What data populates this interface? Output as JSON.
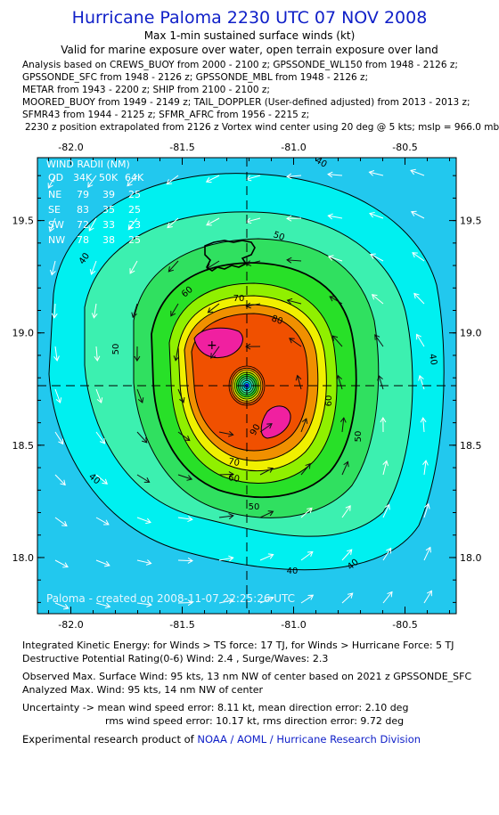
{
  "header": {
    "title": "Hurricane Paloma 2230 UTC 07 NOV 2008",
    "subtitle": "Max 1-min sustained surface winds (kt)",
    "valid_note": "Valid for marine exposure over water, open terrain exposure over land",
    "analysis_lines": [
      "Analysis based on  CREWS_BUOY from 2000 - 2100 z;  GPSSONDE_WL150 from 1948 - 2126 z;",
      "GPSSONDE_SFC from 1948 - 2126 z;  GPSSONDE_MBL from 1948 - 2126 z;",
      "METAR from 1943 - 2200 z;  SHIP from 2100 - 2100 z;",
      "MOORED_BUOY from 1949 - 2149 z;  TAIL_DOPPLER (User-defined adjusted) from 2013 - 2013 z;",
      "SFMR43 from 1944 - 2125 z;  SFMR_AFRC from 1956 - 2215 z;",
      " 2230 z position extrapolated from 2126 z Vortex wind center using 20 deg @ 5 kts; mslp = 966.0 mb"
    ]
  },
  "chart_data": {
    "type": "contour",
    "x_ticks": [
      "-82.0",
      "-81.5",
      "-81.0",
      "-80.5"
    ],
    "y_ticks": [
      "19.5",
      "19.0",
      "18.5",
      "18.0"
    ],
    "xlim": [
      -82.15,
      -80.27
    ],
    "ylim": [
      17.75,
      19.78
    ],
    "center": {
      "lon": -81.2,
      "lat": 18.76
    },
    "contour_levels": [
      40,
      50,
      60,
      70,
      80,
      90
    ],
    "contour_labels": [
      "40",
      "50",
      "60",
      "70",
      "80",
      "90"
    ],
    "fill_colors": {
      "outer": "#22c8ee",
      "34": "#00f0f0",
      "40": "#3cf0b0",
      "50": "#30e060",
      "60": "#28e028",
      "70": "#90f000",
      "75": "#f0f000",
      "80": "#f09000",
      "85": "#f05000",
      "95": "#f020a0"
    },
    "wind_radii": {
      "title": "WIND RADII (NM)",
      "columns": [
        "QD",
        "34K",
        "50K",
        "64K"
      ],
      "rows": [
        [
          "NE",
          "79",
          "39",
          "25"
        ],
        [
          "SE",
          "83",
          "35",
          "25"
        ],
        [
          "SW",
          "72",
          "33",
          "23"
        ],
        [
          "NW",
          "78",
          "38",
          "25"
        ]
      ]
    },
    "watermark": "Paloma - created on 2008-11-07 22:25:26 UTC"
  },
  "footer": {
    "ike": "Integrated Kinetic Energy:  for Winds > TS force: 17 TJ,  for Winds > Hurricane Force: 5 TJ",
    "dpr": "Destructive Potential Rating(0-6)   Wind: 2.4 , Surge/Waves: 2.3",
    "observed": "Observed Max. Surface Wind: 95 kts, 13 nm NW of center based on 2021 z GPSSONDE_SFC",
    "analyzed": "Analyzed Max. Wind: 95 kts, 14 nm NW of center",
    "uncertainty1": "Uncertainty -> mean wind speed error: 8.11 kt,   mean direction error: 2.10 deg",
    "uncertainty2": "rms wind speed error: 10.17 kt,   rms direction error: 9.72 deg",
    "credit_prefix": "Experimental research product of ",
    "credit_org": "NOAA / AOML / Hurricane Research Division"
  }
}
